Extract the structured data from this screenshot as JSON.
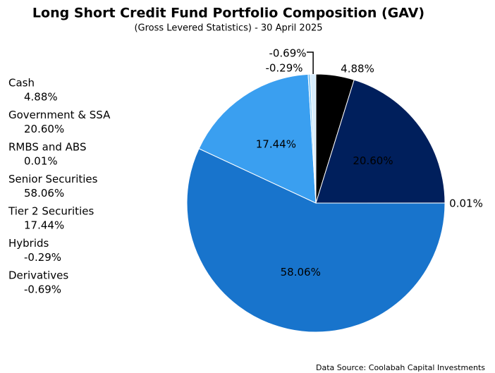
{
  "chart_data": {
    "type": "pie",
    "title": "Long Short Credit Fund Portfolio Composition (GAV)",
    "subtitle": "(Gross Levered Statistics) - 30 April 2025",
    "categories": [
      "Cash",
      "Government & SSA",
      "RMBS and ABS",
      "Senior Securities",
      "Tier 2 Securities",
      "Hybrids",
      "Derivatives"
    ],
    "values": [
      4.88,
      20.6,
      0.01,
      58.06,
      17.44,
      -0.29,
      -0.69
    ],
    "value_labels": [
      "4.88%",
      "20.60%",
      "0.01%",
      "58.06%",
      "17.44%",
      "-0.29%",
      "-0.69%"
    ],
    "colors": [
      "#000000",
      "#001f5c",
      "#0a3a8a",
      "#1874cc",
      "#3a9ff0",
      "#8ccbf5",
      "#d6ecfc"
    ],
    "legend": "left",
    "source": "Data Source: Coolabah Capital Investments"
  }
}
